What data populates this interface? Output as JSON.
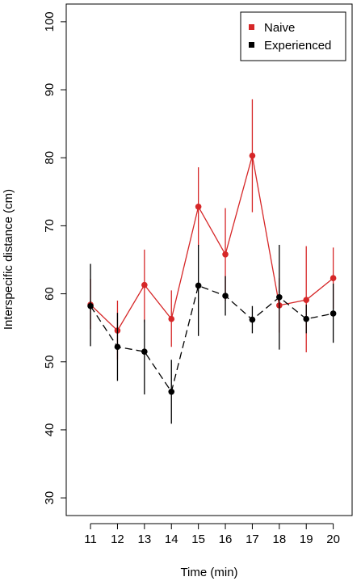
{
  "chart_data": {
    "type": "line",
    "xlabel": "Time (min)",
    "ylabel": "Interspecific distance (cm)",
    "x": [
      11,
      12,
      13,
      14,
      15,
      16,
      17,
      18,
      19,
      20
    ],
    "xlim": [
      10.1,
      20.7
    ],
    "ylim": [
      27.4,
      102.6
    ],
    "yticks": [
      30,
      40,
      50,
      60,
      70,
      80,
      90,
      100
    ],
    "legend_position": "top-right",
    "grid": false,
    "series": [
      {
        "name": "Naive",
        "color": "#d62728",
        "line_style": "solid",
        "values": [
          58.4,
          54.6,
          61.3,
          56.3,
          72.8,
          65.8,
          80.3,
          58.3,
          59.1,
          62.3
        ],
        "error_low": [
          54.8,
          50.3,
          55.8,
          52.2,
          67.0,
          59.0,
          72.0,
          54.3,
          51.4,
          57.8
        ],
        "error_high": [
          62.2,
          59.0,
          66.5,
          60.5,
          78.6,
          72.6,
          88.6,
          62.3,
          67.0,
          66.8
        ]
      },
      {
        "name": "Experienced",
        "color": "#000000",
        "line_style": "dashed",
        "values": [
          58.2,
          52.2,
          51.5,
          45.6,
          61.2,
          59.7,
          56.2,
          59.5,
          56.3,
          57.1
        ],
        "error_low": [
          52.3,
          47.2,
          45.2,
          40.9,
          53.8,
          56.8,
          54.2,
          51.8,
          54.2,
          52.8
        ],
        "error_high": [
          64.4,
          57.2,
          56.2,
          50.3,
          67.2,
          62.6,
          58.2,
          67.2,
          58.4,
          61.5
        ]
      }
    ]
  }
}
